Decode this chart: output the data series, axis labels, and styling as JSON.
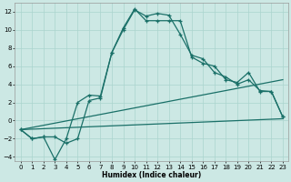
{
  "xlabel": "Humidex (Indice chaleur)",
  "xlim": [
    -0.5,
    23.5
  ],
  "ylim": [
    -4.5,
    13
  ],
  "xticks": [
    0,
    1,
    2,
    3,
    4,
    5,
    6,
    7,
    8,
    9,
    10,
    11,
    12,
    13,
    14,
    15,
    16,
    17,
    18,
    19,
    20,
    21,
    22,
    23
  ],
  "yticks": [
    -4,
    -2,
    0,
    2,
    4,
    6,
    8,
    10,
    12
  ],
  "bg_color": "#cce8e4",
  "grid_color": "#aad4ce",
  "line_color": "#1a7068",
  "line1_x": [
    0,
    1,
    2,
    3,
    4,
    5,
    6,
    7,
    8,
    9,
    10,
    11,
    12,
    13,
    14,
    15,
    16,
    17,
    18,
    19,
    20,
    21,
    22,
    23
  ],
  "line1_y": [
    -1,
    -2,
    -1.8,
    -1.8,
    -2.5,
    -2,
    2.2,
    2.5,
    7.5,
    10.2,
    12.3,
    11,
    11,
    11,
    11,
    7,
    6.3,
    6.0,
    4.5,
    4.2,
    5.3,
    3.2,
    3.2,
    0.4
  ],
  "line2_x": [
    0,
    1,
    2,
    3,
    4,
    5,
    6,
    7,
    8,
    9,
    10,
    11,
    12,
    13,
    14,
    15,
    16,
    17,
    18,
    19,
    20,
    21,
    22,
    23
  ],
  "line2_y": [
    -1,
    -2,
    -1.8,
    -4.3,
    -2,
    2.0,
    2.8,
    2.7,
    7.5,
    10.0,
    12.2,
    11.5,
    11.8,
    11.6,
    9.5,
    7.2,
    6.8,
    5.3,
    4.8,
    4.0,
    4.5,
    3.3,
    3.2,
    0.4
  ],
  "line3_x": [
    0,
    23
  ],
  "line3_y": [
    -1,
    4.5
  ],
  "line4_x": [
    0,
    23
  ],
  "line4_y": [
    -1,
    0.2
  ]
}
